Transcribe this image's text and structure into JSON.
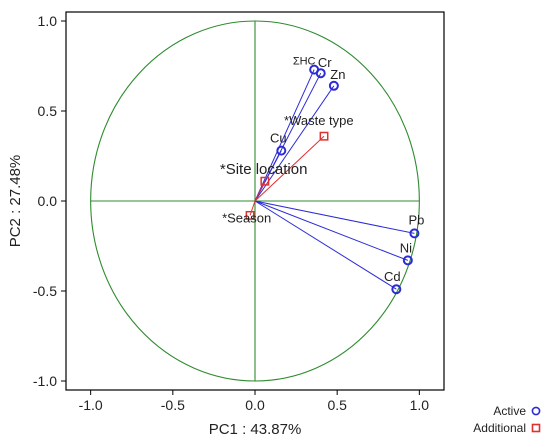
{
  "chart_data": {
    "type": "scatter",
    "subtype": "pca-correlation-circle",
    "title": "",
    "xlabel": "PC1 : 43.87%",
    "ylabel": "PC2 : 27.48%",
    "xlim": [
      -1.15,
      1.15
    ],
    "ylim": [
      -1.05,
      1.05
    ],
    "xticks": [
      "-1.0",
      "-0.5",
      "0.0",
      "0.5",
      "1.0"
    ],
    "yticks": [
      "1.0",
      "0.5",
      "0.0",
      "-0.5",
      "-1.0"
    ],
    "xtick_values": [
      -1.0,
      -0.5,
      0.0,
      0.5,
      1.0
    ],
    "ytick_values": [
      1.0,
      0.5,
      0.0,
      -0.5,
      -1.0
    ],
    "grid": false,
    "circle_radius": 1.0,
    "legend_position": "bottom-right",
    "legend": [
      {
        "label": "Active",
        "marker": "circle"
      },
      {
        "label": "Additional",
        "marker": "square"
      }
    ],
    "series": [
      {
        "name": "Active",
        "color": "#2b2bd8",
        "marker": "circle",
        "points": [
          {
            "label": "ΣHC",
            "x": 0.36,
            "y": 0.73
          },
          {
            "label": "Cr",
            "x": 0.4,
            "y": 0.71
          },
          {
            "label": "Zn",
            "x": 0.48,
            "y": 0.64
          },
          {
            "label": "Cu",
            "x": 0.16,
            "y": 0.28
          },
          {
            "label": "Pb",
            "x": 0.97,
            "y": -0.18
          },
          {
            "label": "Ni",
            "x": 0.93,
            "y": -0.33
          },
          {
            "label": "Cd",
            "x": 0.86,
            "y": -0.49
          }
        ]
      },
      {
        "name": "Additional",
        "color": "#e03030",
        "marker": "square",
        "points": [
          {
            "label": "*Waste type",
            "x": 0.42,
            "y": 0.36
          },
          {
            "label": "*Site location",
            "x": 0.06,
            "y": 0.11
          },
          {
            "label": "*Season",
            "x": -0.03,
            "y": -0.08
          }
        ]
      }
    ],
    "colors": {
      "circle": "#2e8b2e",
      "axes_lines": "#2e8b2e",
      "active": "#2b2bd8",
      "additional": "#e03030",
      "frame": "#000000"
    }
  }
}
